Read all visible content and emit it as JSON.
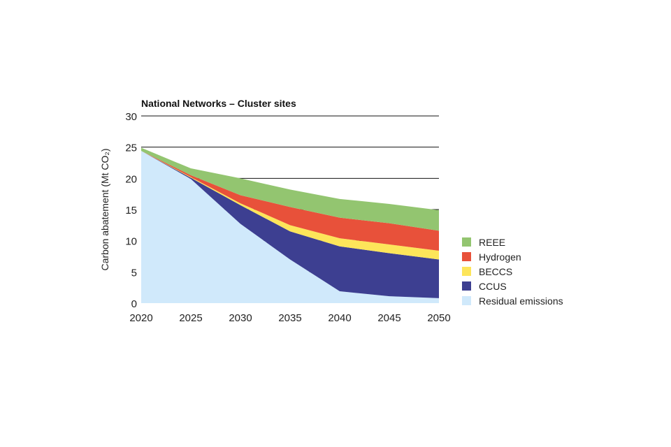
{
  "chart_data": {
    "type": "area",
    "stacked": true,
    "title": "National Networks – Cluster sites",
    "xlabel": "",
    "ylabel": "Carbon abatement (Mt CO₂)",
    "x": [
      2020,
      2025,
      2030,
      2035,
      2040,
      2045,
      2050
    ],
    "xticks": [
      "2020",
      "2025",
      "2030",
      "2035",
      "2040",
      "2045",
      "2050"
    ],
    "yticks": [
      "0",
      "5",
      "10",
      "15",
      "20",
      "25",
      "30"
    ],
    "ylim": [
      0,
      30
    ],
    "grid": true,
    "legend_position": "right",
    "series": [
      {
        "name": "Residual emissions",
        "color": "#d0e9fb",
        "values": [
          24.4,
          19.9,
          12.7,
          7.0,
          1.9,
          1.1,
          0.8
        ]
      },
      {
        "name": "CCUS",
        "color": "#3d3f91",
        "values": [
          0,
          0.2,
          3.0,
          4.5,
          7.2,
          6.9,
          6.2
        ]
      },
      {
        "name": "BECCS",
        "color": "#fde55a",
        "values": [
          0,
          0.1,
          0.3,
          1.0,
          1.3,
          1.4,
          1.4
        ]
      },
      {
        "name": "Hydrogen",
        "color": "#e8513a",
        "values": [
          0,
          0.3,
          1.3,
          2.9,
          3.3,
          3.4,
          3.2
        ]
      },
      {
        "name": "REEE",
        "color": "#93c570",
        "values": [
          0.5,
          1.1,
          2.7,
          2.8,
          3.0,
          3.1,
          3.3
        ]
      }
    ],
    "legend_order": [
      "REEE",
      "Hydrogen",
      "BECCS",
      "CCUS",
      "Residual emissions"
    ]
  }
}
